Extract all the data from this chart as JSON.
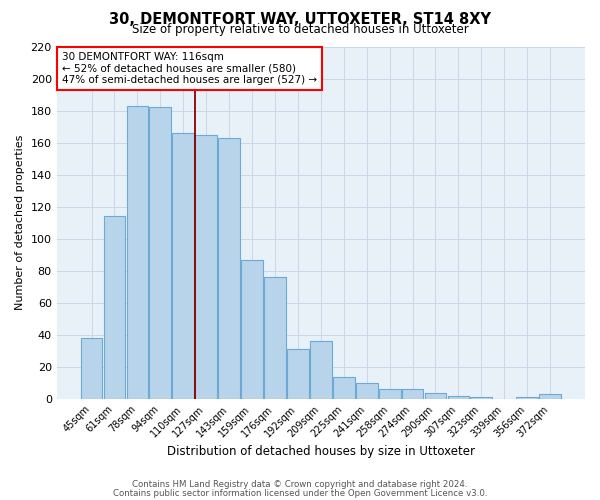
{
  "title": "30, DEMONTFORT WAY, UTTOXETER, ST14 8XY",
  "subtitle": "Size of property relative to detached houses in Uttoxeter",
  "xlabel": "Distribution of detached houses by size in Uttoxeter",
  "ylabel": "Number of detached properties",
  "categories": [
    "45sqm",
    "61sqm",
    "78sqm",
    "94sqm",
    "110sqm",
    "127sqm",
    "143sqm",
    "159sqm",
    "176sqm",
    "192sqm",
    "209sqm",
    "225sqm",
    "241sqm",
    "258sqm",
    "274sqm",
    "290sqm",
    "307sqm",
    "323sqm",
    "339sqm",
    "356sqm",
    "372sqm"
  ],
  "values": [
    38,
    114,
    183,
    182,
    166,
    165,
    163,
    87,
    76,
    31,
    36,
    14,
    10,
    6,
    6,
    4,
    2,
    1,
    0,
    1,
    3
  ],
  "bar_color": "#b8d4ea",
  "bar_edge_color": "#6aaad4",
  "bar_linewidth": 0.8,
  "grid_color": "#c8d8e8",
  "background_color": "#e8f0f8",
  "annotation_text_line1": "30 DEMONTFORT WAY: 116sqm",
  "annotation_text_line2": "← 52% of detached houses are smaller (580)",
  "annotation_text_line3": "47% of semi-detached houses are larger (527) →",
  "red_line_x": 4.5,
  "red_line_color": "#8b0000",
  "ylim": [
    0,
    220
  ],
  "yticks": [
    0,
    20,
    40,
    60,
    80,
    100,
    120,
    140,
    160,
    180,
    200,
    220
  ],
  "footer_line1": "Contains HM Land Registry data © Crown copyright and database right 2024.",
  "footer_line2": "Contains public sector information licensed under the Open Government Licence v3.0."
}
